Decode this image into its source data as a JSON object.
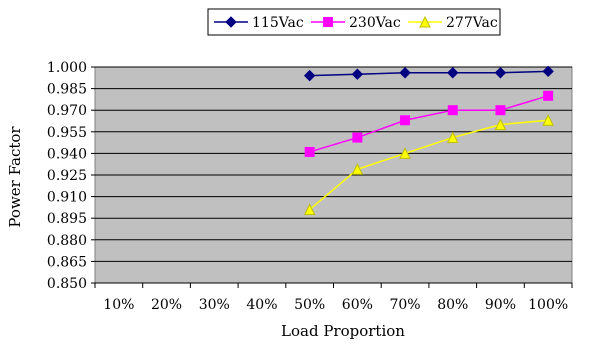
{
  "chart_data": {
    "type": "line",
    "categories": [
      "10%",
      "20%",
      "30%",
      "40%",
      "50%",
      "60%",
      "70%",
      "80%",
      "90%",
      "100%"
    ],
    "series": [
      {
        "name": "115Vac",
        "color": "#000080",
        "marker": "diamond",
        "values": [
          null,
          null,
          null,
          null,
          0.994,
          0.995,
          0.996,
          0.996,
          0.996,
          0.997
        ]
      },
      {
        "name": "230Vac",
        "color": "#ff00ff",
        "marker": "square",
        "values": [
          null,
          null,
          null,
          null,
          0.941,
          0.951,
          0.963,
          0.97,
          0.97,
          0.98
        ]
      },
      {
        "name": "277Vac",
        "color": "#ffff00",
        "marker": "triangle",
        "values": [
          null,
          null,
          null,
          null,
          0.901,
          0.929,
          0.94,
          0.951,
          0.96,
          0.963
        ]
      }
    ],
    "xlabel": "Load Proportion",
    "ylabel": "Power Factor",
    "ylim": [
      0.85,
      1.0
    ],
    "yticks": [
      "1.000",
      "0.985",
      "0.970",
      "0.955",
      "0.940",
      "0.925",
      "0.910",
      "0.895",
      "0.880",
      "0.865",
      "0.850"
    ],
    "grid": true,
    "plot_background": "#c0c0c0",
    "legend_position": "top"
  }
}
